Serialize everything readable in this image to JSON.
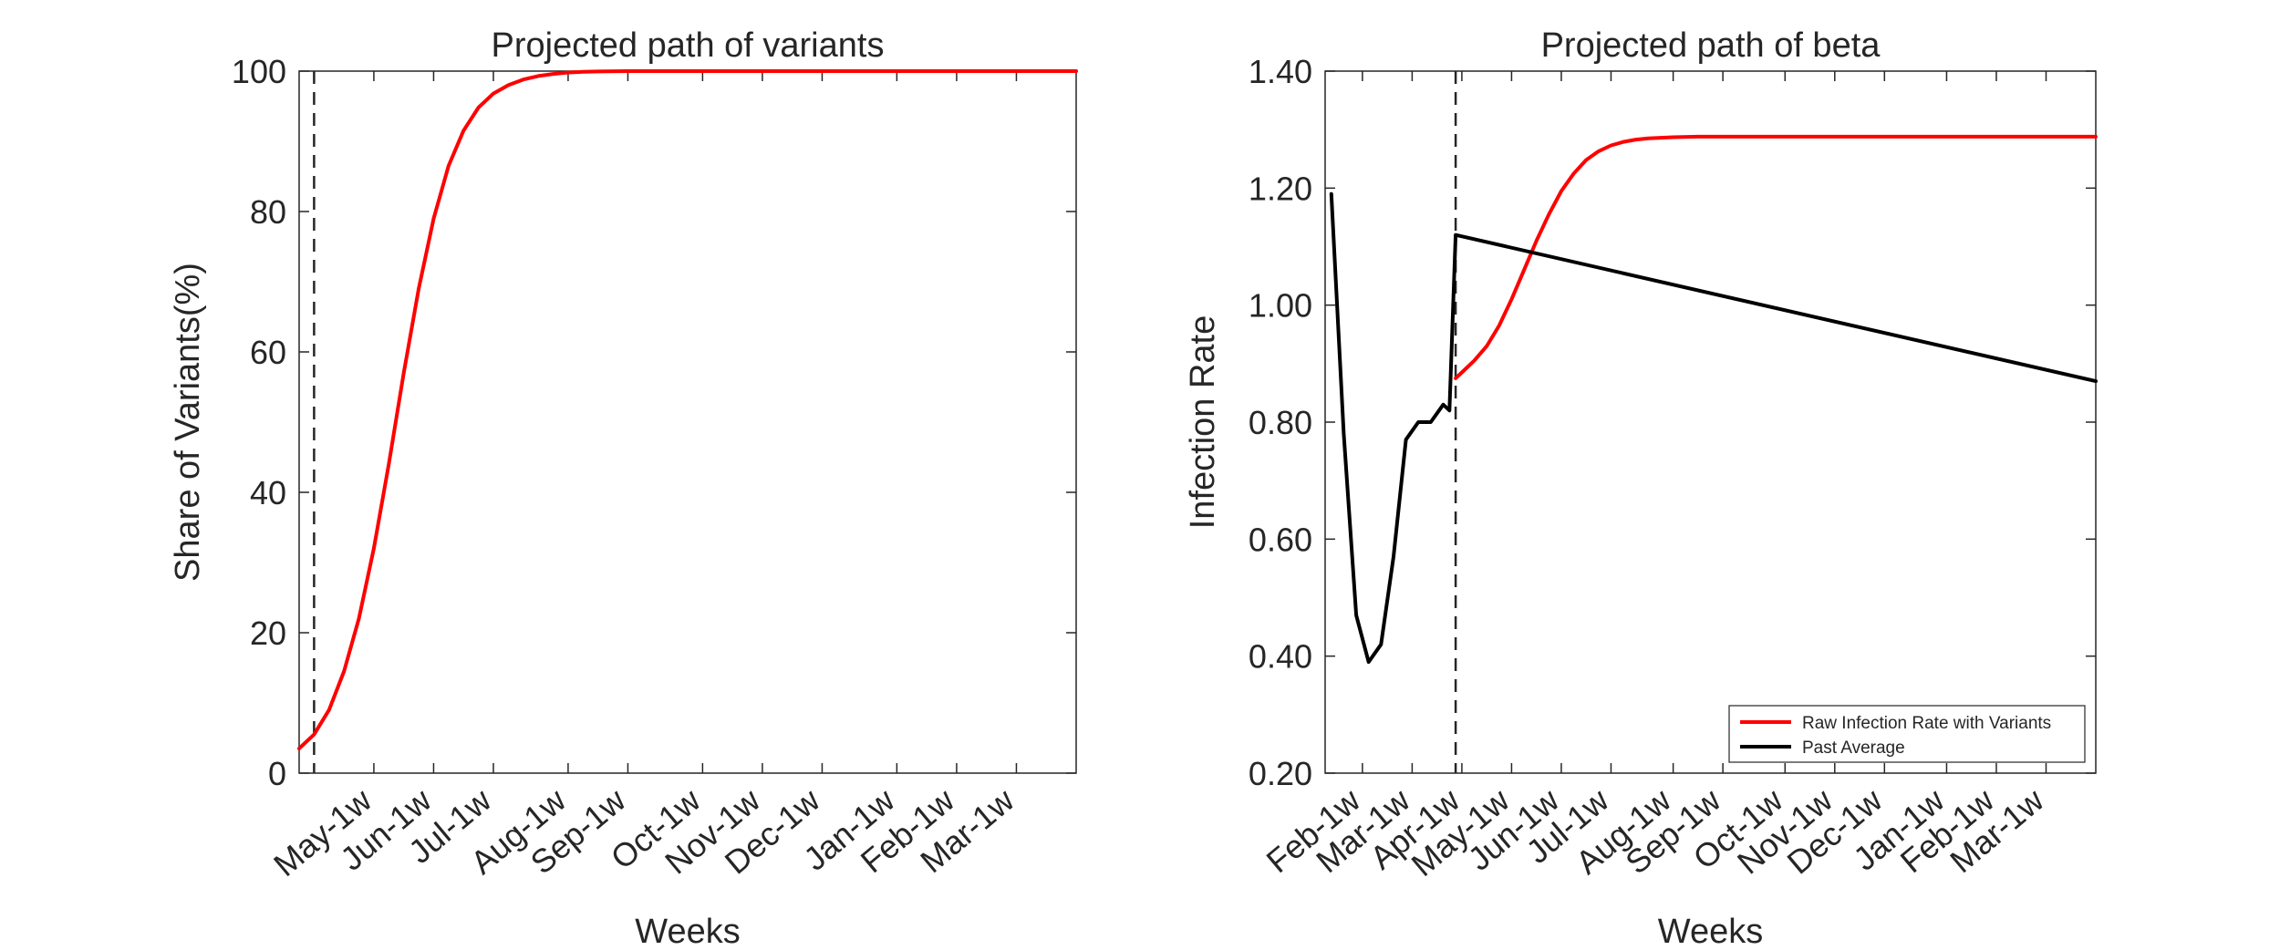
{
  "chart_data": [
    {
      "type": "line",
      "title": "Projected path of variants",
      "xlabel": "Weeks",
      "ylabel": "Share of Variants(%)",
      "xlim": [
        0,
        52
      ],
      "ylim": [
        0,
        100
      ],
      "yticks": [
        0,
        20,
        40,
        60,
        80,
        100
      ],
      "ytick_labels": [
        "0",
        "20",
        "40",
        "60",
        "80",
        "100"
      ],
      "xticks": [
        5,
        9,
        13,
        18,
        22,
        27,
        31,
        35,
        40,
        44,
        48
      ],
      "xtick_labels": [
        "May-1w",
        "Jun-1w",
        "Jul-1w",
        "Aug-1w",
        "Sep-1w",
        "Oct-1w",
        "Nov-1w",
        "Dec-1w",
        "Jan-1w",
        "Feb-1w",
        "Mar-1w"
      ],
      "vline": 1,
      "grid": false,
      "series": [
        {
          "color": "#ff0000",
          "x": [
            0,
            1,
            2,
            3,
            4,
            5,
            6,
            7,
            8,
            9,
            10,
            11,
            12,
            13,
            14,
            15,
            16,
            17,
            18,
            19,
            20,
            22,
            24,
            26,
            30,
            34,
            38,
            42,
            46,
            50,
            52
          ],
          "y": [
            3.5,
            5.5,
            9,
            14.5,
            22,
            32,
            44,
            57,
            69,
            79,
            86.5,
            91.5,
            94.8,
            96.8,
            98,
            98.8,
            99.3,
            99.6,
            99.8,
            99.9,
            99.95,
            100,
            100,
            100,
            100,
            100,
            100,
            100,
            100,
            100,
            100
          ]
        }
      ]
    },
    {
      "type": "line",
      "title": "Projected path of beta",
      "xlabel": "Weeks",
      "ylabel": "Infection Rate",
      "xlim": [
        -10,
        52
      ],
      "ylim": [
        0.2,
        1.4
      ],
      "yticks": [
        0.2,
        0.4,
        0.6,
        0.8,
        1.0,
        1.2,
        1.4
      ],
      "ytick_labels": [
        "0.20",
        "0.40",
        "0.60",
        "0.80",
        "1.00",
        "1.20",
        "1.40"
      ],
      "xticks": [
        -7,
        -3,
        1,
        5,
        9,
        13,
        18,
        22,
        27,
        31,
        35,
        40,
        44,
        48
      ],
      "xtick_labels": [
        "Feb-1w",
        "Mar-1w",
        "Apr-1w",
        "May-1w",
        "Jun-1w",
        "Jul-1w",
        "Aug-1w",
        "Sep-1w",
        "Oct-1w",
        "Nov-1w",
        "Dec-1w",
        "Jan-1w",
        "Feb-1w",
        "Mar-1w"
      ],
      "vline": 0.5,
      "grid": false,
      "legend_position": "bottom-right",
      "series": [
        {
          "name": "Raw Infection Rate with Variants",
          "color": "#ff0000",
          "x": [
            0.5,
            1,
            2,
            3,
            4,
            5,
            6,
            7,
            8,
            9,
            10,
            11,
            12,
            13,
            14,
            15,
            16,
            18,
            20,
            22,
            26,
            30,
            36,
            42,
            48,
            52
          ],
          "y": [
            0.875,
            0.885,
            0.905,
            0.93,
            0.965,
            1.01,
            1.06,
            1.11,
            1.155,
            1.195,
            1.225,
            1.248,
            1.263,
            1.273,
            1.279,
            1.283,
            1.285,
            1.287,
            1.288,
            1.288,
            1.288,
            1.288,
            1.288,
            1.288,
            1.288,
            1.288
          ]
        },
        {
          "name": "Past Average",
          "color": "#000000",
          "x": [
            -9.5,
            -8.5,
            -7.5,
            -6.5,
            -5.5,
            -4.5,
            -3.5,
            -2.5,
            -1.5,
            -0.5,
            0,
            0.5,
            52
          ],
          "y": [
            1.19,
            0.78,
            0.47,
            0.39,
            0.42,
            0.57,
            0.77,
            0.8,
            0.8,
            0.83,
            0.82,
            1.12,
            0.87
          ]
        }
      ]
    }
  ]
}
